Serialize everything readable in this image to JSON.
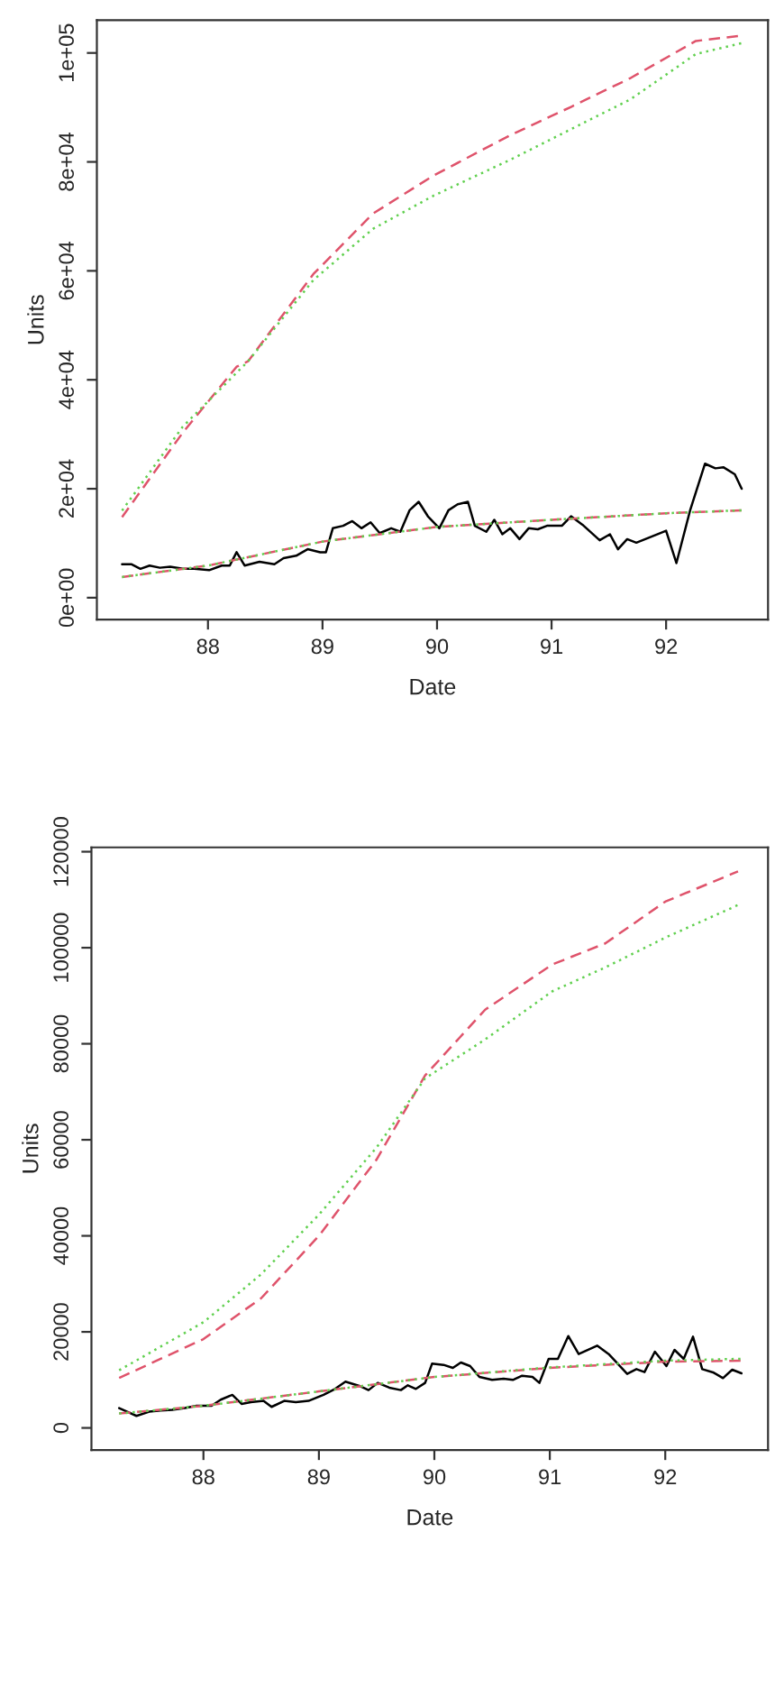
{
  "chart_data": [
    {
      "type": "line",
      "xlabel": "Date",
      "ylabel": "Units",
      "xlim": [
        87.03,
        92.89
      ],
      "xticks": [
        88,
        89,
        90,
        91,
        92
      ],
      "ylim": [
        -4000,
        106000
      ],
      "yticks": [
        {
          "value": 0,
          "label": "0e+00"
        },
        {
          "value": 20000,
          "label": "2e+04"
        },
        {
          "value": 40000,
          "label": "4e+04"
        },
        {
          "value": 60000,
          "label": "6e+04"
        },
        {
          "value": 80000,
          "label": "8e+04"
        },
        {
          "value": 100000,
          "label": "1e+05"
        }
      ],
      "grid": false,
      "series": [
        {
          "color": "#000000",
          "line_style": "solid",
          "x": [
            87.25,
            87.33,
            87.41,
            87.49,
            87.58,
            87.67,
            87.78,
            87.88,
            88.01,
            88.12,
            88.19,
            88.25,
            88.32,
            88.45,
            88.58,
            88.66,
            88.77,
            88.87,
            88.98,
            89.03,
            89.09,
            89.18,
            89.26,
            89.34,
            89.42,
            89.5,
            89.6,
            89.68,
            89.76,
            89.84,
            89.92,
            90.02,
            90.1,
            90.18,
            90.27,
            90.33,
            90.43,
            90.5,
            90.57,
            90.64,
            90.72,
            90.8,
            90.88,
            90.96,
            91.09,
            91.17,
            91.27,
            91.42,
            91.51,
            91.58,
            91.66,
            91.74,
            92.0,
            92.09,
            92.21,
            92.34,
            92.43,
            92.5,
            92.6,
            92.66
          ],
          "values": [
            6150,
            6150,
            5300,
            5900,
            5500,
            5700,
            5300,
            5300,
            5050,
            5900,
            5900,
            8350,
            5900,
            6600,
            6150,
            7250,
            7700,
            8900,
            8350,
            8350,
            12750,
            13200,
            14050,
            12750,
            13850,
            11850,
            12750,
            12100,
            16050,
            17600,
            14950,
            12750,
            16050,
            17150,
            17600,
            13200,
            12100,
            14300,
            11650,
            12750,
            10750,
            12750,
            12550,
            13200,
            13200,
            14950,
            13400,
            10550,
            11650,
            8900,
            10750,
            10100,
            12300,
            6350,
            16050,
            24600,
            23750,
            23950,
            22650,
            20000
          ]
        },
        {
          "color": "#df536b",
          "line_style": "dashed",
          "x": [
            87.25,
            87.78,
            88.25,
            88.35,
            88.92,
            89.44,
            89.97,
            90.64,
            91.17,
            91.69,
            92.26,
            92.63
          ],
          "values": [
            14800,
            30300,
            42400,
            43400,
            59400,
            70500,
            77500,
            84900,
            90100,
            95400,
            102200,
            103100
          ]
        },
        {
          "color": "#61d04f",
          "line_style": "dotted",
          "x": [
            87.25,
            87.78,
            88.35,
            88.92,
            89.44,
            89.97,
            90.64,
            91.17,
            91.69,
            92.26,
            92.66
          ],
          "values": [
            16000,
            31400,
            43400,
            58300,
            67700,
            73800,
            80400,
            86000,
            91500,
            99800,
            101800
          ]
        },
        {
          "color": "#df536b",
          "line_style": "dashed",
          "x": [
            87.25,
            88,
            89,
            90,
            91,
            92,
            92.66
          ],
          "values": [
            3800,
            5900,
            10300,
            13000,
            14300,
            15500,
            16050
          ]
        },
        {
          "color": "#61d04f",
          "line_style": "dotted",
          "x": [
            87.25,
            88,
            89,
            90,
            91,
            92,
            92.66
          ],
          "values": [
            3800,
            5900,
            10300,
            13000,
            14300,
            15500,
            16050
          ]
        }
      ]
    },
    {
      "type": "line",
      "xlabel": "Date",
      "ylabel": "Units",
      "xlim": [
        87.03,
        92.89
      ],
      "xticks": [
        88,
        89,
        90,
        91,
        92
      ],
      "ylim": [
        -4600,
        120900
      ],
      "yticks": [
        0,
        20000,
        40000,
        60000,
        80000,
        100000,
        120000
      ],
      "grid": false,
      "series": [
        {
          "color": "#000000",
          "line_style": "solid",
          "x": [
            87.27,
            87.34,
            87.42,
            87.53,
            87.63,
            87.73,
            87.84,
            87.94,
            88.07,
            88.15,
            88.25,
            88.33,
            88.41,
            88.52,
            88.59,
            88.7,
            88.8,
            88.91,
            89.04,
            89.14,
            89.23,
            89.35,
            89.43,
            89.51,
            89.61,
            89.71,
            89.77,
            89.84,
            89.92,
            89.98,
            90.08,
            90.16,
            90.23,
            90.31,
            90.39,
            90.5,
            90.6,
            90.68,
            90.76,
            90.85,
            90.91,
            90.99,
            91.07,
            91.16,
            91.25,
            91.41,
            91.51,
            91.67,
            91.75,
            91.82,
            91.91,
            92.01,
            92.08,
            92.16,
            92.24,
            92.32,
            92.42,
            92.5,
            92.58,
            92.66
          ],
          "values": [
            4125,
            3375,
            2500,
            3375,
            3625,
            3750,
            4125,
            4625,
            4625,
            5875,
            6875,
            5000,
            5375,
            5625,
            4375,
            5625,
            5375,
            5625,
            6875,
            8125,
            9625,
            8750,
            7875,
            9375,
            8375,
            7875,
            8875,
            8125,
            9375,
            13375,
            13125,
            12500,
            13625,
            12875,
            10625,
            10000,
            10250,
            10000,
            10875,
            10625,
            9375,
            14375,
            14375,
            19125,
            15375,
            17125,
            15375,
            11250,
            12250,
            11625,
            15875,
            12875,
            16250,
            14375,
            19000,
            12250,
            11500,
            10375,
            12125,
            11375
          ]
        },
        {
          "color": "#df536b",
          "line_style": "dashed",
          "x": [
            87.27,
            88,
            88.5,
            89,
            89.5,
            89.92,
            90.44,
            91.02,
            91.48,
            92.0,
            92.63
          ],
          "values": [
            10400,
            18500,
            27000,
            40000,
            55900,
            73400,
            87100,
            96500,
            100900,
            109600,
            115900
          ]
        },
        {
          "color": "#61d04f",
          "line_style": "dotted",
          "x": [
            87.27,
            88,
            88.5,
            89,
            89.5,
            89.92,
            90.44,
            91.02,
            91.48,
            92.0,
            92.64
          ],
          "values": [
            12000,
            22000,
            32000,
            44400,
            58400,
            72800,
            80900,
            90900,
            95900,
            102100,
            109000
          ]
        },
        {
          "color": "#df536b",
          "line_style": "dashed",
          "x": [
            87.27,
            88,
            89,
            90,
            91,
            92,
            92.66
          ],
          "values": [
            3000,
            4600,
            7600,
            10600,
            12500,
            13800,
            14000
          ]
        },
        {
          "color": "#61d04f",
          "line_style": "dotted",
          "x": [
            87.27,
            88,
            89,
            90,
            91,
            92,
            92.66
          ],
          "values": [
            3000,
            4600,
            7600,
            10600,
            12600,
            14000,
            14400
          ]
        }
      ]
    }
  ]
}
